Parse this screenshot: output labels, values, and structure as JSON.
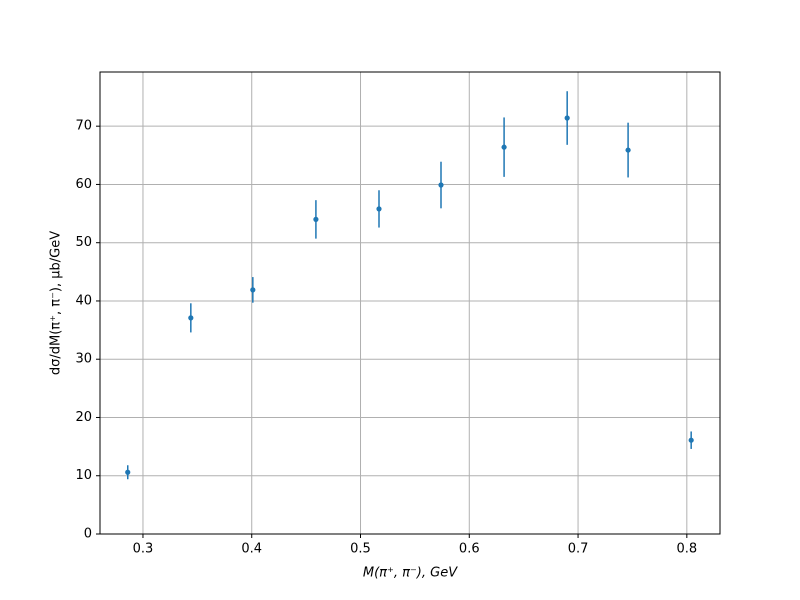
{
  "chart_data": {
    "type": "errorbar",
    "x_label": "M(π⁺, π⁻), GeV",
    "y_label": "dσ/dM(π⁺, π⁻), μb/GeV",
    "x": [
      0.286,
      0.344,
      0.401,
      0.459,
      0.517,
      0.574,
      0.632,
      0.69,
      0.746,
      0.804
    ],
    "values": [
      10.6,
      37.1,
      41.9,
      54.0,
      55.8,
      59.9,
      66.4,
      71.4,
      65.9,
      16.1
    ],
    "errors": [
      1.2,
      2.5,
      2.2,
      3.3,
      3.2,
      4.0,
      5.1,
      4.6,
      4.7,
      1.5
    ],
    "color": "#1f77b4",
    "xlim": [
      0.2605,
      0.8305
    ],
    "xticks": [
      0.3,
      0.4,
      0.5,
      0.6,
      0.7,
      0.8
    ],
    "ylim": [
      0,
      79.3
    ],
    "yticks": [
      0,
      10,
      20,
      30,
      40,
      50,
      60,
      70
    ],
    "grid": true
  }
}
